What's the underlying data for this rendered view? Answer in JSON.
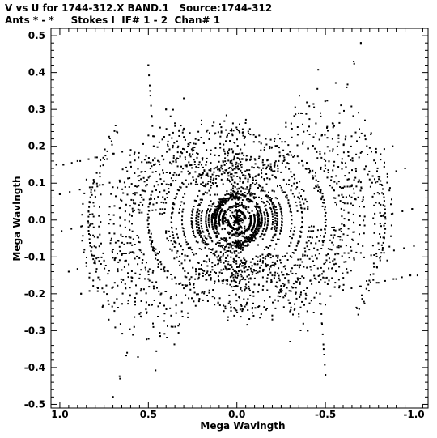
{
  "header": {
    "line1": "V vs U for 1744-312.X BAND.1   Source:1744-312",
    "line2": "Ants * - *     Stokes I  IF# 1 - 2  Chan# 1"
  },
  "chart_data": {
    "type": "scatter",
    "title": "V vs U for 1744-312.X BAND.1   Source:1744-312",
    "subtitle": "Ants * - *     Stokes I  IF# 1 - 2  Chan# 1",
    "xlabel": "Mega Wavlngth",
    "ylabel": "Mega Wavlngth",
    "xlim": [
      1.05,
      -1.08
    ],
    "ylim": [
      -0.51,
      0.52
    ],
    "x_ticks": [
      "1.0",
      "0.5",
      "0.0",
      "-0.5",
      "-1.0"
    ],
    "x_tick_values": [
      1.0,
      0.5,
      0.0,
      -0.5,
      -1.0
    ],
    "y_ticks": [
      "0.5",
      "0.4",
      "0.3",
      "0.2",
      "0.1",
      "0.0",
      "-0.1",
      "-0.2",
      "-0.3",
      "-0.4",
      "-0.5"
    ],
    "y_tick_values": [
      0.5,
      0.4,
      0.3,
      0.2,
      0.1,
      0.0,
      -0.1,
      -0.2,
      -0.3,
      -0.4,
      -0.5
    ],
    "grid": false,
    "point_color": "#000000",
    "pattern": "uv coverage: six-armed star pattern of tracks, denser near the origin; outer points reach about u=+1.0 at v=+0.15 and u=-1.0 at v=-0.15, and up to v=+0.48 near u=-0.72 and v=-0.48 near u=+0.7",
    "series": [
      {
        "tracks_points": [
          [
            0.7,
            -0.48
          ],
          [
            0.66,
            -0.43
          ],
          [
            0.62,
            -0.36
          ],
          [
            0.58,
            -0.29
          ],
          [
            0.54,
            -0.22
          ],
          [
            0.5,
            -0.16
          ],
          [
            0.45,
            -0.09
          ],
          [
            0.4,
            -0.03
          ],
          [
            -0.7,
            0.48
          ],
          [
            -0.66,
            0.43
          ],
          [
            -0.62,
            0.36
          ],
          [
            -0.58,
            0.29
          ],
          [
            -0.54,
            0.22
          ],
          [
            -0.5,
            0.16
          ],
          [
            -0.45,
            0.09
          ],
          [
            -0.4,
            0.03
          ],
          [
            0.5,
            0.42
          ],
          [
            0.49,
            0.35
          ],
          [
            0.48,
            0.28
          ],
          [
            0.47,
            0.2
          ],
          [
            -0.5,
            -0.42
          ],
          [
            -0.49,
            -0.35
          ],
          [
            -0.48,
            -0.28
          ],
          [
            -0.47,
            -0.2
          ],
          [
            0.98,
            0.15
          ],
          [
            0.9,
            0.16
          ],
          [
            0.8,
            0.17
          ],
          [
            0.7,
            0.18
          ],
          [
            0.6,
            0.19
          ],
          [
            -0.98,
            -0.15
          ],
          [
            -0.9,
            -0.16
          ],
          [
            -0.8,
            -0.17
          ],
          [
            -0.7,
            -0.18
          ],
          [
            -0.6,
            -0.19
          ],
          [
            1.0,
            0.07
          ],
          [
            0.99,
            -0.03
          ],
          [
            -1.0,
            -0.07
          ],
          [
            -0.99,
            0.03
          ],
          [
            0.95,
            -0.14
          ],
          [
            0.88,
            -0.2
          ],
          [
            -0.95,
            0.14
          ],
          [
            -0.88,
            0.2
          ],
          [
            0.3,
            0.33
          ],
          [
            -0.3,
            -0.33
          ],
          [
            0.2,
            0.27
          ],
          [
            -0.2,
            -0.27
          ],
          [
            0.4,
            0.3
          ],
          [
            -0.4,
            -0.3
          ],
          [
            -1.02,
            -0.15
          ],
          [
            1.02,
            0.15
          ]
        ]
      }
    ]
  }
}
